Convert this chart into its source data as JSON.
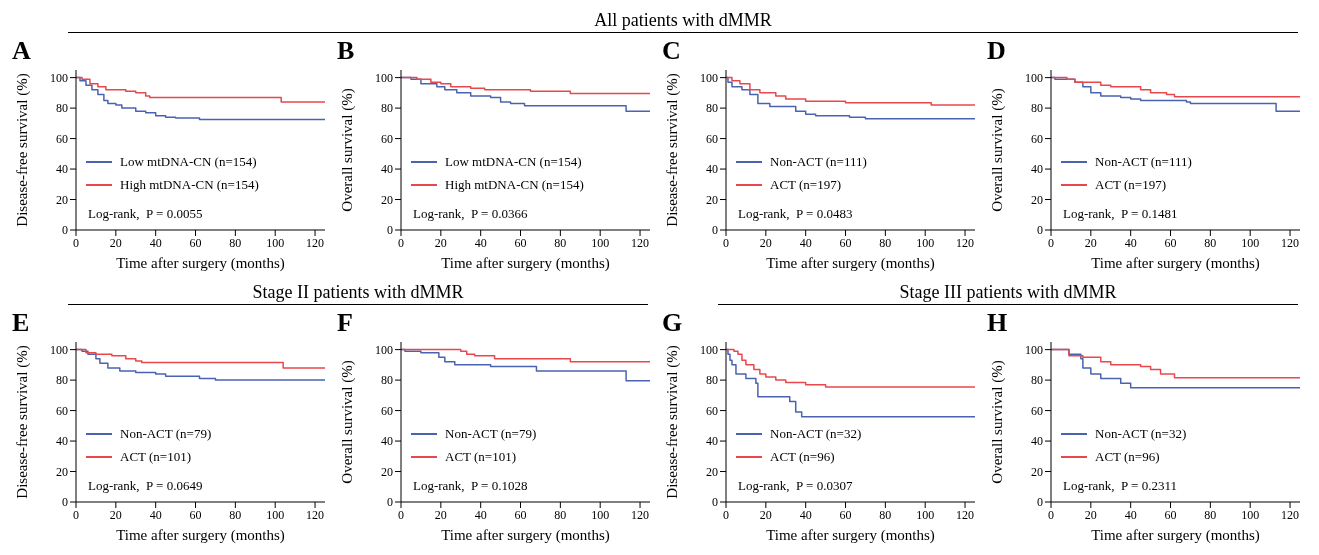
{
  "chart_data": [
    {
      "type": "other",
      "title": "All patients with dMMR"
    },
    {
      "type": "step",
      "title": "A",
      "xlabel": "Time after surgery (months)",
      "ylabel": "Disease-free survival (%)",
      "xlim": [
        0,
        125
      ],
      "xticks": [
        0,
        20,
        40,
        60,
        80,
        100,
        120
      ],
      "ylim": [
        0,
        105
      ],
      "yticks": [
        0,
        20,
        40,
        60,
        80,
        100
      ],
      "legend": "bottom left",
      "annotations": [
        "Log-rank,  P = 0.0055"
      ],
      "series": [
        {
          "name": "Low mtDNA-CN (n=154)",
          "color": "#4a63b0",
          "x": [
            0,
            2,
            5,
            8,
            11,
            14,
            16,
            20,
            23,
            30,
            35,
            40,
            45,
            50,
            62,
            125
          ],
          "values": [
            100,
            98,
            95,
            92,
            89,
            85,
            83,
            82,
            80,
            78,
            77,
            75,
            74,
            73.5,
            72.5,
            72.5
          ]
        },
        {
          "name": "High mtDNA-CN (n=154)",
          "color": "#e8474c",
          "x": [
            0,
            3,
            7,
            11,
            15,
            25,
            30,
            35,
            37,
            102,
            103,
            125
          ],
          "values": [
            100,
            99,
            96,
            94,
            92,
            91,
            90,
            88,
            87,
            87,
            84,
            84
          ]
        }
      ]
    },
    {
      "type": "step",
      "title": "B",
      "xlabel": "Time after surgery (months)",
      "ylabel": "Overall survival (%)",
      "xlim": [
        0,
        125
      ],
      "xticks": [
        0,
        20,
        40,
        60,
        80,
        100,
        120
      ],
      "ylim": [
        0,
        105
      ],
      "yticks": [
        0,
        20,
        40,
        60,
        80,
        100
      ],
      "legend": "bottom left",
      "annotations": [
        "Log-rank,  P = 0.0366"
      ],
      "series": [
        {
          "name": "Low mtDNA-CN (n=154)",
          "color": "#4a63b0",
          "x": [
            0,
            5,
            10,
            18,
            22,
            28,
            35,
            45,
            50,
            55,
            62,
            112,
            113,
            125
          ],
          "values": [
            100,
            99,
            96,
            94,
            92,
            90,
            88,
            87,
            84,
            83,
            81.5,
            81.5,
            78,
            78
          ]
        },
        {
          "name": "High mtDNA-CN (n=154)",
          "color": "#e8474c",
          "x": [
            0,
            8,
            15,
            20,
            25,
            35,
            42,
            65,
            85,
            125
          ],
          "values": [
            100,
            99,
            97,
            96,
            94,
            93,
            92,
            91,
            89.5,
            89.5
          ]
        }
      ]
    },
    {
      "type": "step",
      "title": "C",
      "xlabel": "Time after surgery (months)",
      "ylabel": "Disease-free survival (%)",
      "xlim": [
        0,
        125
      ],
      "xticks": [
        0,
        20,
        40,
        60,
        80,
        100,
        120
      ],
      "ylim": [
        0,
        105
      ],
      "yticks": [
        0,
        20,
        40,
        60,
        80,
        100
      ],
      "legend": "bottom left",
      "annotations": [
        "Log-rank,  P = 0.0483"
      ],
      "series": [
        {
          "name": "Non-ACT (n=111)",
          "color": "#4a63b0",
          "x": [
            0,
            1,
            3,
            8,
            12,
            16,
            22,
            35,
            40,
            45,
            62,
            70,
            125
          ],
          "values": [
            100,
            97,
            94,
            92,
            89,
            83,
            81,
            78,
            76,
            75,
            74,
            73,
            73
          ]
        },
        {
          "name": "ACT (n=197)",
          "color": "#e8474c",
          "x": [
            0,
            3,
            7,
            12,
            17,
            25,
            30,
            40,
            60,
            102,
            103,
            125
          ],
          "values": [
            100,
            98,
            96,
            92,
            90,
            88,
            86,
            84.5,
            83.5,
            83.5,
            82,
            82
          ]
        }
      ]
    },
    {
      "type": "step",
      "title": "D",
      "xlabel": "Time after surgery (months)",
      "ylabel": "Overall survival (%)",
      "xlim": [
        0,
        125
      ],
      "xticks": [
        0,
        20,
        40,
        60,
        80,
        100,
        120
      ],
      "ylim": [
        0,
        105
      ],
      "yticks": [
        0,
        20,
        40,
        60,
        80,
        100
      ],
      "legend": "bottom left",
      "annotations": [
        "Log-rank,  P = 0.1481"
      ],
      "series": [
        {
          "name": "Non-ACT (n=111)",
          "color": "#4a63b0",
          "x": [
            0,
            2,
            12,
            16,
            20,
            25,
            35,
            40,
            45,
            68,
            70,
            112,
            113,
            125
          ],
          "values": [
            100,
            99,
            97,
            94,
            90,
            88,
            87,
            86,
            85,
            84,
            83,
            83,
            78,
            78
          ]
        },
        {
          "name": "ACT (n=197)",
          "color": "#e8474c",
          "x": [
            0,
            8,
            12,
            25,
            30,
            45,
            50,
            58,
            62,
            125
          ],
          "values": [
            100,
            99,
            97,
            95,
            94,
            92,
            90,
            89,
            87.5,
            87.5
          ]
        }
      ]
    },
    {
      "type": "other",
      "title": "Stage II patients with dMMR"
    },
    {
      "type": "step",
      "title": "E",
      "xlabel": "Time after surgery (months)",
      "ylabel": "Disease-free survival (%)",
      "xlim": [
        0,
        125
      ],
      "xticks": [
        0,
        20,
        40,
        60,
        80,
        100,
        120
      ],
      "ylim": [
        0,
        105
      ],
      "yticks": [
        0,
        20,
        40,
        60,
        80,
        100
      ],
      "legend": "bottom left",
      "annotations": [
        "Log-rank,  P = 0.0649"
      ],
      "series": [
        {
          "name": "Non-ACT (n=79)",
          "color": "#4a63b0",
          "x": [
            0,
            3,
            6,
            10,
            12,
            16,
            22,
            30,
            40,
            45,
            62,
            70,
            125
          ],
          "values": [
            100,
            99,
            97,
            94,
            91,
            88,
            86,
            85,
            84,
            82.5,
            81,
            80,
            80
          ]
        },
        {
          "name": "ACT (n=101)",
          "color": "#e8474c",
          "x": [
            0,
            5,
            10,
            18,
            25,
            30,
            33,
            103,
            104,
            125
          ],
          "values": [
            100,
            98,
            97,
            96,
            94,
            92.5,
            91.5,
            91.5,
            88,
            88
          ]
        }
      ]
    },
    {
      "type": "step",
      "title": "F",
      "xlabel": "Time after surgery (months)",
      "ylabel": "Overall survival (%)",
      "xlim": [
        0,
        125
      ],
      "xticks": [
        0,
        20,
        40,
        60,
        80,
        100,
        120
      ],
      "ylim": [
        0,
        105
      ],
      "yticks": [
        0,
        20,
        40,
        60,
        80,
        100
      ],
      "legend": "bottom left",
      "annotations": [
        "Log-rank,  P = 0.1028"
      ],
      "series": [
        {
          "name": "Non-ACT (n=79)",
          "color": "#4a63b0",
          "x": [
            0,
            2,
            10,
            19,
            22,
            27,
            45,
            68,
            112,
            113,
            125
          ],
          "values": [
            100,
            99,
            98,
            95,
            92,
            90,
            89,
            86,
            86,
            79.5,
            79.5
          ]
        },
        {
          "name": "ACT (n=101)",
          "color": "#e8474c",
          "x": [
            0,
            30,
            33,
            37,
            47,
            85,
            125
          ],
          "values": [
            100,
            99,
            97,
            96,
            94,
            92,
            92
          ]
        }
      ]
    },
    {
      "type": "other",
      "title": "Stage III patients with dMMR"
    },
    {
      "type": "step",
      "title": "G",
      "xlabel": "Time after surgery (months)",
      "ylabel": "Disease-free survival (%)",
      "xlim": [
        0,
        125
      ],
      "xticks": [
        0,
        20,
        40,
        60,
        80,
        100,
        120
      ],
      "ylim": [
        0,
        105
      ],
      "yticks": [
        0,
        20,
        40,
        60,
        80,
        100
      ],
      "legend": "bottom left",
      "annotations": [
        "Log-rank,  P = 0.0307"
      ],
      "series": [
        {
          "name": "Non-ACT (n=32)",
          "color": "#4a63b0",
          "x": [
            0,
            1,
            2,
            3,
            5,
            10,
            15,
            16,
            32,
            35,
            38,
            125
          ],
          "values": [
            100,
            97,
            93,
            90,
            84,
            81,
            78,
            69,
            66,
            59,
            56,
            56
          ]
        },
        {
          "name": "ACT (n=96)",
          "color": "#e8474c",
          "x": [
            0,
            4,
            6,
            8,
            10,
            14,
            17,
            20,
            25,
            30,
            40,
            50,
            125
          ],
          "values": [
            100,
            99,
            97,
            93,
            90,
            87,
            84,
            82,
            80,
            78.5,
            77,
            75.5,
            75.5
          ]
        }
      ]
    },
    {
      "type": "step",
      "title": "H",
      "xlabel": "Time after surgery (months)",
      "ylabel": "Overall survival (%)",
      "xlim": [
        0,
        125
      ],
      "xticks": [
        0,
        20,
        40,
        60,
        80,
        100,
        120
      ],
      "ylim": [
        0,
        105
      ],
      "yticks": [
        0,
        20,
        40,
        60,
        80,
        100
      ],
      "legend": "bottom left",
      "annotations": [
        "Log-rank,  P = 0.2311"
      ],
      "series": [
        {
          "name": "Non-ACT (n=32)",
          "color": "#4a63b0",
          "x": [
            0,
            9,
            15,
            16,
            20,
            25,
            35,
            40,
            125
          ],
          "values": [
            100,
            97,
            94,
            88,
            84,
            81,
            78,
            75,
            75
          ]
        },
        {
          "name": "ACT (n=96)",
          "color": "#e8474c",
          "x": [
            0,
            9,
            16,
            25,
            30,
            45,
            50,
            55,
            62,
            125
          ],
          "values": [
            100,
            96,
            95,
            92,
            90,
            89,
            87,
            84,
            81.5,
            81.5
          ]
        }
      ]
    }
  ]
}
